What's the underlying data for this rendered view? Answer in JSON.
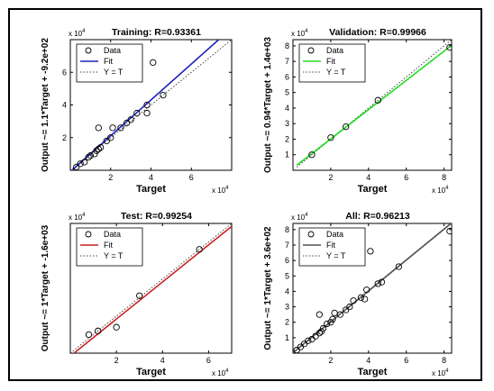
{
  "chart_data": [
    {
      "type": "scatter",
      "title": "Training: R=0.93361",
      "xlabel": "Target",
      "ylabel": "Output ~= 1.1*Target + -9.2e+02",
      "x_exponent": "x 10^4",
      "y_exponent": "x 10^4",
      "xlim": [
        0,
        8
      ],
      "ylim": [
        0,
        8
      ],
      "xticks": [
        2,
        4,
        6
      ],
      "yticks": [
        2,
        4,
        6
      ],
      "fit_color": "#1f1fbf",
      "fit_line": [
        [
          0,
          -0.092
        ],
        [
          8,
          8.708
        ]
      ],
      "identity_line": [
        [
          0,
          0
        ],
        [
          8,
          8
        ]
      ],
      "legend": {
        "placement": "top-left",
        "entries": [
          "Data",
          "Fit",
          "Y = T"
        ]
      },
      "points": [
        [
          0.3,
          0.2
        ],
        [
          0.5,
          0.4
        ],
        [
          0.7,
          0.5
        ],
        [
          0.9,
          0.8
        ],
        [
          1.0,
          0.9
        ],
        [
          1.2,
          1.0
        ],
        [
          1.3,
          1.2
        ],
        [
          1.4,
          1.3
        ],
        [
          1.5,
          1.4
        ],
        [
          1.4,
          2.6
        ],
        [
          1.8,
          1.8
        ],
        [
          2.0,
          2.0
        ],
        [
          2.1,
          2.6
        ],
        [
          2.5,
          2.6
        ],
        [
          2.8,
          2.9
        ],
        [
          3.0,
          3.1
        ],
        [
          3.3,
          3.5
        ],
        [
          3.8,
          3.5
        ],
        [
          3.8,
          4.0
        ],
        [
          4.1,
          6.6
        ],
        [
          4.6,
          4.6
        ]
      ]
    },
    {
      "type": "scatter",
      "title": "Validation: R=0.99966",
      "xlabel": "Target",
      "ylabel": "Output ~= 0.94*Target + 1.4e+03",
      "x_exponent": "x 10^4",
      "y_exponent": "x 10^4",
      "xlim": [
        0,
        8.4
      ],
      "ylim": [
        0,
        8.4
      ],
      "xticks": [
        2,
        4,
        6,
        8
      ],
      "yticks": [
        1,
        2,
        3,
        4,
        5,
        6,
        7,
        8
      ],
      "fit_color": "#22dd22",
      "fit_line": [
        [
          0.2,
          0.328
        ],
        [
          8.4,
          8.036
        ]
      ],
      "identity_line": [
        [
          0.2,
          0.2
        ],
        [
          8.4,
          8.4
        ]
      ],
      "legend": {
        "placement": "top-left",
        "entries": [
          "Data",
          "Fit",
          "Y = T"
        ]
      },
      "points": [
        [
          1.0,
          1.0
        ],
        [
          2.0,
          2.1
        ],
        [
          2.8,
          2.8
        ],
        [
          4.5,
          4.5
        ],
        [
          8.3,
          7.9
        ]
      ]
    },
    {
      "type": "scatter",
      "title": "Test: R=0.99254",
      "xlabel": "Target",
      "ylabel": "Output ~= 1*Target + -1.6e+03",
      "x_exponent": "x 10^4",
      "y_exponent": "x 10^4",
      "xlim": [
        0,
        7
      ],
      "ylim": [
        0,
        7
      ],
      "xticks": [
        2,
        4,
        6
      ],
      "yticks": [],
      "fit_color": "#cc2222",
      "fit_line": [
        [
          0,
          -0.16
        ],
        [
          7,
          6.84
        ]
      ],
      "identity_line": [
        [
          0,
          0
        ],
        [
          7,
          7
        ]
      ],
      "legend": {
        "placement": "top-left",
        "entries": [
          "Data",
          "Fit",
          "Y = T"
        ]
      },
      "points": [
        [
          0.8,
          1.0
        ],
        [
          1.2,
          1.2
        ],
        [
          2.0,
          1.4
        ],
        [
          3.0,
          3.1
        ],
        [
          5.6,
          5.6
        ]
      ]
    },
    {
      "type": "scatter",
      "title": "All: R=0.96213",
      "xlabel": "Target",
      "ylabel": "Output ~= 1*Target + 3.6e+02",
      "x_exponent": "x 10^4",
      "y_exponent": "x 10^4",
      "xlim": [
        0,
        8.4
      ],
      "ylim": [
        0,
        8.4
      ],
      "xticks": [
        2,
        4,
        6,
        8
      ],
      "yticks": [
        1,
        2,
        3,
        4,
        5,
        6,
        7,
        8
      ],
      "fit_color": "#555555",
      "fit_line": [
        [
          0,
          0.036
        ],
        [
          8.4,
          8.436
        ]
      ],
      "identity_line": [
        [
          0,
          0
        ],
        [
          8.4,
          8.4
        ]
      ],
      "legend": {
        "placement": "top-left",
        "entries": [
          "Data",
          "Fit",
          "Y = T"
        ]
      },
      "points": [
        [
          0.2,
          0.2
        ],
        [
          0.4,
          0.4
        ],
        [
          0.6,
          0.6
        ],
        [
          0.8,
          0.8
        ],
        [
          1.0,
          0.9
        ],
        [
          1.2,
          1.1
        ],
        [
          1.4,
          1.3
        ],
        [
          1.5,
          1.4
        ],
        [
          1.6,
          1.6
        ],
        [
          1.4,
          2.5
        ],
        [
          1.8,
          1.9
        ],
        [
          2.0,
          2.0
        ],
        [
          2.1,
          2.2
        ],
        [
          2.2,
          2.6
        ],
        [
          2.5,
          2.5
        ],
        [
          2.8,
          2.8
        ],
        [
          3.0,
          3.0
        ],
        [
          3.2,
          3.4
        ],
        [
          3.6,
          3.6
        ],
        [
          3.8,
          3.5
        ],
        [
          3.9,
          4.1
        ],
        [
          4.1,
          6.6
        ],
        [
          4.5,
          4.5
        ],
        [
          4.7,
          4.6
        ],
        [
          5.6,
          5.6
        ],
        [
          8.3,
          7.9
        ]
      ]
    }
  ]
}
